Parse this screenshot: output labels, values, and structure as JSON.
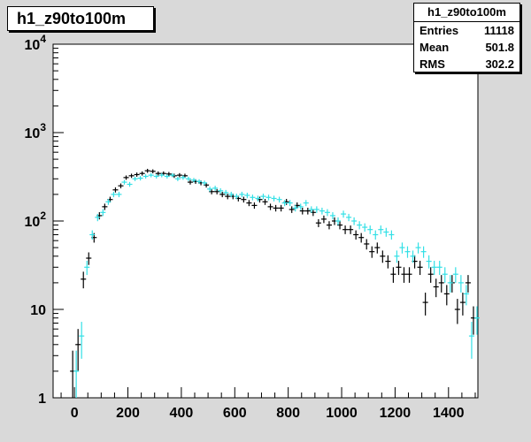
{
  "histogram_title": "h1_z90to100m",
  "stats": {
    "name": "h1_z90to100m",
    "rows": [
      {
        "label": "Entries",
        "value": "11118"
      },
      {
        "label": "Mean",
        "value": "501.8"
      },
      {
        "label": "RMS",
        "value": "302.2"
      }
    ]
  },
  "colors": {
    "background": "#d9d9d9",
    "plot_area": "#ffffff",
    "series_black": "#000000",
    "series_cyan": "#33e0e6"
  },
  "chart_data": {
    "type": "scatter",
    "title": "h1_z90to100m",
    "xlim": [
      -80,
      1510
    ],
    "ylim": [
      1,
      10000
    ],
    "y_scale": "log",
    "grid": false,
    "x_ticks": [
      0,
      200,
      400,
      600,
      800,
      1000,
      1200,
      1400
    ],
    "y_tick_labels": [
      {
        "value": 1,
        "label": "1",
        "exp": ""
      },
      {
        "value": 10,
        "label": "10",
        "exp": ""
      },
      {
        "value": 100,
        "label": "10",
        "exp": "2"
      },
      {
        "value": 1000,
        "label": "10",
        "exp": "3"
      },
      {
        "value": 10000,
        "label": "10",
        "exp": "4"
      }
    ],
    "bin_width": 20,
    "series": [
      {
        "color": "#000000",
        "x": [
          0,
          20,
          40,
          60,
          80,
          100,
          120,
          140,
          160,
          180,
          200,
          220,
          240,
          260,
          280,
          300,
          320,
          340,
          360,
          380,
          400,
          420,
          440,
          460,
          480,
          500,
          520,
          540,
          560,
          580,
          600,
          620,
          640,
          660,
          680,
          700,
          720,
          740,
          760,
          780,
          800,
          820,
          840,
          860,
          880,
          900,
          920,
          940,
          960,
          980,
          1000,
          1020,
          1040,
          1060,
          1080,
          1100,
          1120,
          1140,
          1160,
          1180,
          1200,
          1220,
          1240,
          1260,
          1280,
          1300,
          1320,
          1340,
          1360,
          1380,
          1400,
          1420,
          1440,
          1460,
          1480,
          1500
        ],
        "y": [
          2,
          4,
          22,
          38,
          65,
          115,
          145,
          175,
          225,
          250,
          310,
          325,
          335,
          345,
          370,
          365,
          345,
          345,
          340,
          325,
          330,
          325,
          275,
          280,
          270,
          255,
          215,
          215,
          200,
          190,
          190,
          180,
          175,
          160,
          150,
          175,
          165,
          145,
          140,
          140,
          165,
          135,
          150,
          130,
          130,
          125,
          95,
          105,
          90,
          100,
          90,
          80,
          80,
          70,
          65,
          55,
          45,
          50,
          40,
          35,
          25,
          30,
          25,
          25,
          35,
          30,
          12,
          25,
          18,
          20,
          15,
          20,
          10,
          12,
          20,
          8
        ]
      },
      {
        "color": "#33e0e6",
        "x": [
          0,
          20,
          40,
          60,
          80,
          100,
          120,
          140,
          160,
          180,
          200,
          220,
          240,
          260,
          280,
          300,
          320,
          340,
          360,
          380,
          400,
          420,
          440,
          460,
          480,
          500,
          520,
          540,
          560,
          580,
          600,
          620,
          640,
          660,
          680,
          700,
          720,
          740,
          760,
          780,
          800,
          820,
          840,
          860,
          880,
          900,
          920,
          940,
          960,
          980,
          1000,
          1020,
          1040,
          1060,
          1080,
          1100,
          1120,
          1140,
          1160,
          1180,
          1200,
          1220,
          1240,
          1260,
          1280,
          1300,
          1320,
          1340,
          1360,
          1380,
          1400,
          1420,
          1440,
          1460,
          1480,
          1500
        ],
        "y": [
          2,
          5,
          30,
          70,
          110,
          125,
          165,
          200,
          200,
          275,
          260,
          300,
          305,
          320,
          330,
          320,
          330,
          320,
          330,
          300,
          310,
          300,
          290,
          280,
          270,
          230,
          235,
          220,
          210,
          200,
          190,
          200,
          195,
          185,
          180,
          190,
          185,
          180,
          175,
          160,
          160,
          140,
          145,
          160,
          135,
          135,
          130,
          125,
          115,
          100,
          120,
          110,
          100,
          90,
          85,
          80,
          70,
          80,
          75,
          70,
          40,
          50,
          45,
          40,
          50,
          45,
          35,
          30,
          30,
          25,
          20,
          25,
          20,
          15,
          5,
          8
        ]
      }
    ]
  }
}
